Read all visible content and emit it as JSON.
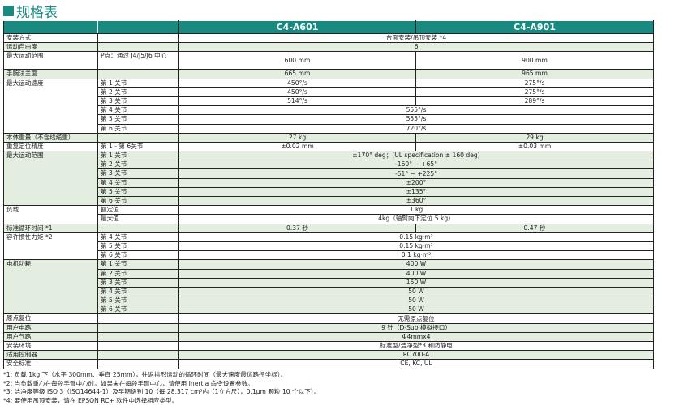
{
  "page_title": "规格表",
  "brand_color": "#1a8a80",
  "shade_color": "#e4eee0",
  "models": [
    "C4-A601",
    "C4-A901"
  ],
  "groups": [
    {
      "label": "安装方式",
      "shade": false,
      "rows": [
        {
          "sub": "",
          "a": "台面安装/吊顶安装 *4"
        }
      ]
    },
    {
      "label": "运动自由度",
      "shade": true,
      "rows": [
        {
          "sub": "",
          "a": "6"
        }
      ]
    },
    {
      "label": "最大运动范围",
      "shade": false,
      "tall": true,
      "rows": [
        {
          "sub": "P点：通过 J4/J5/J6 中心",
          "a": "600 mm",
          "b": "900 mm"
        }
      ]
    },
    {
      "label": "手腕法兰面",
      "shade": true,
      "rows": [
        {
          "sub": "",
          "a": "665 mm",
          "b": "965 mm"
        }
      ]
    },
    {
      "label": "最大运动速度",
      "shade": false,
      "rows": [
        {
          "sub": "第 1 关节",
          "a": "450°/s",
          "b": "275°/s"
        },
        {
          "sub": "第 2 关节",
          "a": "450°/s",
          "b": "275°/s"
        },
        {
          "sub": "第 3 关节",
          "a": "514°/s",
          "b": "289°/s"
        },
        {
          "sub": "第 4 关节",
          "a": "555°/s"
        },
        {
          "sub": "第 5 关节",
          "a": "555°/s"
        },
        {
          "sub": "第 6 关节",
          "a": "720°/s"
        }
      ]
    },
    {
      "label": "本体重量（不含线缆重）",
      "shade": true,
      "rows": [
        {
          "sub": "",
          "a": "27 kg",
          "b": "29 kg"
        }
      ]
    },
    {
      "label": "重复定位精度",
      "shade": false,
      "rows": [
        {
          "sub": "第 1 - 第 6关节",
          "a": "±0.02 mm",
          "b": "±0.03 mm"
        }
      ]
    },
    {
      "label": "最大运动范围",
      "shade": true,
      "rows": [
        {
          "sub": "第 1 关节",
          "a": "±170° deg；(UL specification ± 160 deg)"
        },
        {
          "sub": "第 2 关节",
          "a": "-160° ~ +65°"
        },
        {
          "sub": "第 3 关节",
          "a": "-51° ~ +225°"
        },
        {
          "sub": "第 4 关节",
          "a": "±200°"
        },
        {
          "sub": "第 5 关节",
          "a": "±135°"
        },
        {
          "sub": "第 6 关节",
          "a": "±360°"
        }
      ]
    },
    {
      "label": "负载",
      "shade": false,
      "rows": [
        {
          "sub": "额定值",
          "a": "1 kg"
        },
        {
          "sub": "最大值",
          "a": "4kg（轴臂向下定位 5 kg）"
        }
      ]
    },
    {
      "label": "标准循环时间 *1",
      "shade": true,
      "rows": [
        {
          "sub": "",
          "a": "0.37 秒",
          "b": "0.47 秒"
        }
      ]
    },
    {
      "label": "容许惯性力矩 *2",
      "shade": false,
      "rows": [
        {
          "sub": "第 4 关节",
          "a": "0.15 kg·m²"
        },
        {
          "sub": "第 5 关节",
          "a": "0.15 kg·m²"
        },
        {
          "sub": "第 6 关节",
          "a": "0.1 kg·m²"
        }
      ]
    },
    {
      "label": "电机功耗",
      "shade": true,
      "rows": [
        {
          "sub": "第 1 关节",
          "a": "400 W"
        },
        {
          "sub": "第 2 关节",
          "a": "400 W"
        },
        {
          "sub": "第 3 关节",
          "a": "150 W"
        },
        {
          "sub": "第 4 关节",
          "a": "50 W"
        },
        {
          "sub": "第 5 关节",
          "a": "50 W"
        },
        {
          "sub": "第 6 关节",
          "a": "50 W"
        }
      ]
    },
    {
      "label": "原点复位",
      "shade": false,
      "rows": [
        {
          "sub": "",
          "a": "无需原点复位"
        }
      ]
    },
    {
      "label": "用户电路",
      "shade": true,
      "rows": [
        {
          "sub": "",
          "a": "9 针（D-Sub 模拟接口）"
        }
      ]
    },
    {
      "label": "用户气路",
      "shade": true,
      "rows": [
        {
          "sub": "",
          "a": "Φ4mmx4"
        }
      ]
    },
    {
      "label": "安装环境",
      "shade": false,
      "rows": [
        {
          "sub": "",
          "a": "标准型/洁净型*3 和防静电"
        }
      ]
    },
    {
      "label": "适用控制器",
      "shade": true,
      "rows": [
        {
          "sub": "",
          "a": "RC700-A"
        }
      ]
    },
    {
      "label": "安全标准",
      "shade": false,
      "rows": [
        {
          "sub": "",
          "a": "CE, KC, UL"
        }
      ]
    }
  ],
  "footnotes": [
    "*1: 负载 1kg 下（水平 300mm、垂直 25mm），往返拱形运动的循环时间（最大速度最优路径坐标）。",
    "*2: 当负载重心在每段手臂中心时。如果未在每段手臂中心，请使用 Inertia 命令设置参数。",
    "*3: 洁净度等级 ISO 3（ISO14644-1）及早期级别 10（每 28,317 cm³内（1立方尺），0.1μm 颗粒 10 个以下）。",
    "*4: 要使用吊顶安装，请在 EPSON RC+ 软件中选择相应类型。"
  ]
}
